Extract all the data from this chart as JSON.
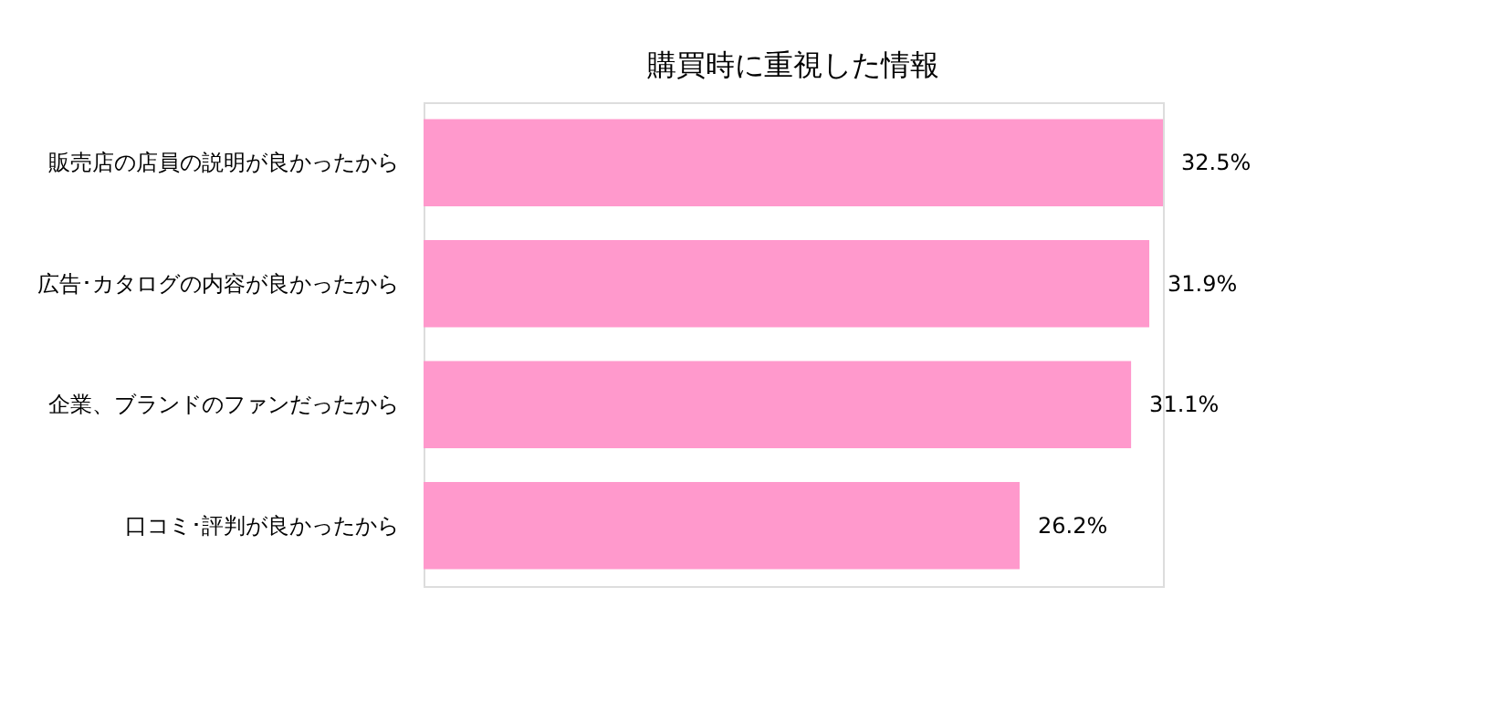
{
  "chart_data": {
    "type": "bar",
    "orientation": "horizontal",
    "title": "購買時に重視した情報",
    "categories": [
      "販売店の店員の説明が良かったから",
      "広告･カタログの内容が良かったから",
      "企業、ブランドのファンだったから",
      "口コミ･評判が良かったから"
    ],
    "values": [
      32.5,
      31.9,
      31.1,
      26.2
    ],
    "value_labels": [
      "32.5%",
      "31.9%",
      "31.1%",
      "26.2%"
    ],
    "color": "#ff99cc"
  }
}
